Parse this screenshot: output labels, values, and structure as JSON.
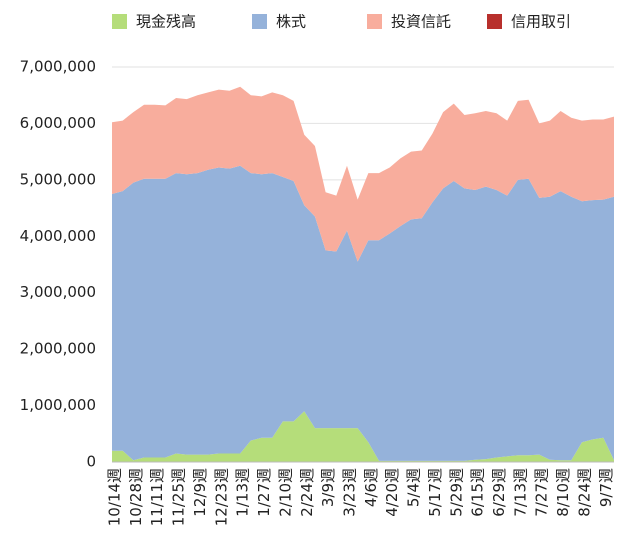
{
  "chart_data": {
    "type": "stacked_area",
    "categories": [
      "10/14週",
      null,
      "10/28週",
      null,
      "11/11週",
      null,
      "11/25週",
      null,
      "12/9週",
      null,
      "12/23週",
      null,
      "1/13週",
      null,
      "1/27週",
      null,
      "2/10週",
      null,
      "2/24週",
      null,
      "3/9週",
      null,
      "3/23週",
      null,
      "4/6週",
      null,
      "4/20週",
      null,
      "5/4週",
      null,
      "5/17週",
      null,
      "5/29週",
      null,
      "6/15週",
      null,
      "6/29週",
      null,
      "7/13週",
      null,
      "7/27週",
      null,
      "8/10週",
      null,
      "8/24週",
      null,
      "9/7週",
      null
    ],
    "series": [
      {
        "name": "現金残高",
        "color": "#b5dd7a",
        "values": [
          200000,
          200000,
          30000,
          80000,
          80000,
          80000,
          150000,
          130000,
          130000,
          130000,
          150000,
          150000,
          150000,
          380000,
          430000,
          430000,
          720000,
          720000,
          900000,
          600000,
          600000,
          600000,
          600000,
          600000,
          350000,
          20000,
          20000,
          20000,
          20000,
          20000,
          20000,
          20000,
          20000,
          20000,
          40000,
          50000,
          80000,
          100000,
          120000,
          120000,
          130000,
          40000,
          30000,
          30000,
          350000,
          400000,
          430000,
          30000
        ]
      },
      {
        "name": "株式",
        "color": "#95b2da",
        "values": [
          4550000,
          4600000,
          4920000,
          4940000,
          4940000,
          4940000,
          4970000,
          4970000,
          4990000,
          5050000,
          5070000,
          5050000,
          5100000,
          4740000,
          4670000,
          4690000,
          4330000,
          4260000,
          3650000,
          3750000,
          3150000,
          3130000,
          3500000,
          2950000,
          3580000,
          3910000,
          4030000,
          4160000,
          4280000,
          4300000,
          4580000,
          4830000,
          4960000,
          4830000,
          4780000,
          4830000,
          4740000,
          4620000,
          4880000,
          4900000,
          4550000,
          4660000,
          4770000,
          4670000,
          4270000,
          4240000,
          4220000,
          4670000
        ]
      },
      {
        "name": "投資信託",
        "color": "#f8ad9d",
        "values": [
          1270000,
          1250000,
          1250000,
          1310000,
          1310000,
          1300000,
          1330000,
          1330000,
          1380000,
          1370000,
          1380000,
          1380000,
          1400000,
          1380000,
          1380000,
          1430000,
          1450000,
          1420000,
          1250000,
          1250000,
          1030000,
          990000,
          1150000,
          1100000,
          1190000,
          1190000,
          1170000,
          1200000,
          1200000,
          1200000,
          1220000,
          1350000,
          1370000,
          1300000,
          1360000,
          1340000,
          1360000,
          1330000,
          1400000,
          1400000,
          1320000,
          1350000,
          1420000,
          1400000,
          1430000,
          1430000,
          1420000,
          1420000
        ]
      },
      {
        "name": "信用取引",
        "color": "#b8302c",
        "values": [
          0,
          0,
          0,
          0,
          0,
          0,
          0,
          0,
          0,
          0,
          0,
          0,
          0,
          0,
          0,
          0,
          0,
          0,
          0,
          0,
          0,
          0,
          0,
          0,
          0,
          0,
          0,
          0,
          0,
          0,
          0,
          0,
          0,
          0,
          0,
          0,
          0,
          0,
          0,
          0,
          0,
          0,
          0,
          0,
          0,
          0,
          0,
          0
        ]
      }
    ],
    "ylim": [
      0,
      7000000
    ],
    "yticks": [
      0,
      {
        "value": 1000000,
        "label": "1,000,000"
      },
      {
        "value": 2000000,
        "label": "2,000,000"
      },
      {
        "value": 3000000,
        "label": "3,000,000"
      },
      {
        "value": 4000000,
        "label": "4,000,000"
      },
      {
        "value": 5000000,
        "label": "5,000,000"
      },
      {
        "value": 6000000,
        "label": "6,000,000"
      },
      {
        "value": 7000000,
        "label": "7,000,000"
      }
    ],
    "grid": true,
    "legend": "top"
  }
}
